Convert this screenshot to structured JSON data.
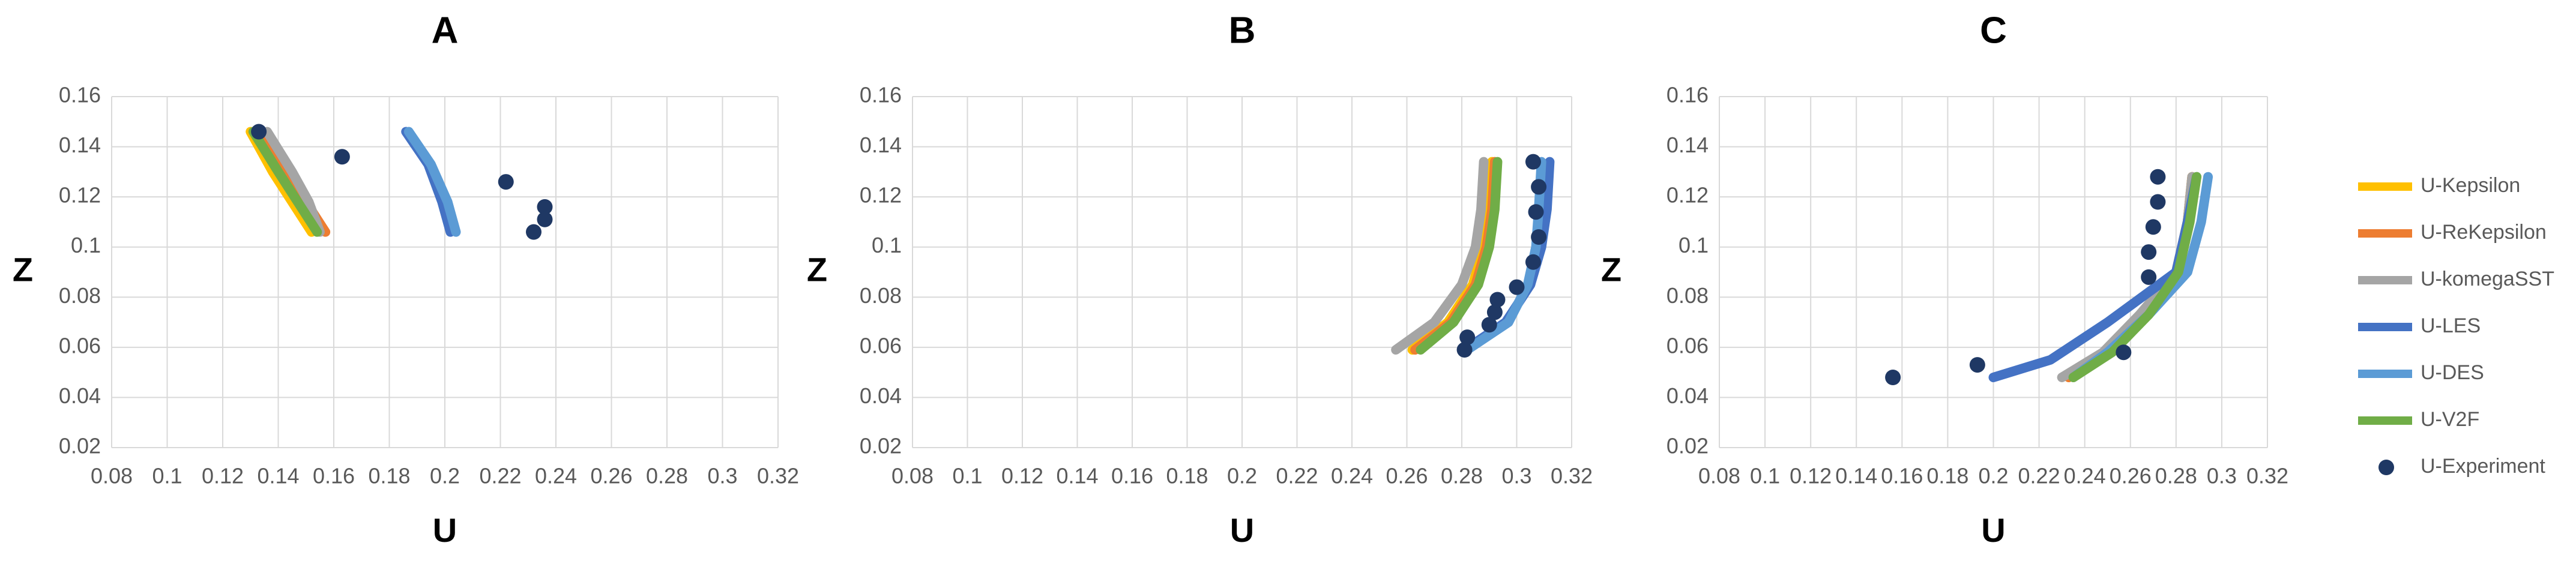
{
  "chart_data": [
    {
      "type": "line",
      "title": "A",
      "x_label": "U",
      "y_label": "Z",
      "xlim": [
        0.08,
        0.32
      ],
      "ylim": [
        0.02,
        0.16
      ],
      "xticks": [
        0.08,
        0.1,
        0.12,
        0.14,
        0.16,
        0.18,
        0.2,
        0.22,
        0.24,
        0.26,
        0.28,
        0.3,
        0.32
      ],
      "yticks": [
        0.02,
        0.04,
        0.06,
        0.08,
        0.1,
        0.12,
        0.14,
        0.16
      ],
      "grid": true,
      "series": [
        {
          "name": "U-Kepsilon",
          "color": "#ffc000",
          "x": [
            0.13,
            0.138,
            0.145,
            0.152
          ],
          "values": [
            0.146,
            0.13,
            0.118,
            0.106
          ]
        },
        {
          "name": "U-ReKepsilon",
          "color": "#ed7d31",
          "x": [
            0.133,
            0.142,
            0.15,
            0.157
          ],
          "values": [
            0.146,
            0.13,
            0.118,
            0.106
          ]
        },
        {
          "name": "U-komegaSST",
          "color": "#a5a5a5",
          "x": [
            0.136,
            0.145,
            0.151,
            0.155
          ],
          "values": [
            0.146,
            0.13,
            0.118,
            0.106
          ]
        },
        {
          "name": "U-LES",
          "color": "#4472c4",
          "x": [
            0.186,
            0.194,
            0.199,
            0.202
          ],
          "values": [
            0.146,
            0.133,
            0.118,
            0.106
          ]
        },
        {
          "name": "U-DES",
          "color": "#5b9bd5",
          "x": [
            0.187,
            0.195,
            0.201,
            0.204
          ],
          "values": [
            0.146,
            0.133,
            0.118,
            0.106
          ]
        },
        {
          "name": "U-V2F",
          "color": "#70ad47",
          "x": [
            0.131,
            0.14,
            0.147,
            0.154
          ],
          "values": [
            0.146,
            0.13,
            0.118,
            0.106
          ]
        },
        {
          "name": "U-Experiment",
          "color": "#1f3864",
          "mode": "markers",
          "x": [
            0.133,
            0.163,
            0.222,
            0.236,
            0.236,
            0.232
          ],
          "values": [
            0.146,
            0.136,
            0.126,
            0.116,
            0.111,
            0.106
          ]
        }
      ]
    },
    {
      "type": "line",
      "title": "B",
      "x_label": "U",
      "y_label": "Z",
      "xlim": [
        0.08,
        0.32
      ],
      "ylim": [
        0.02,
        0.16
      ],
      "xticks": [
        0.08,
        0.1,
        0.12,
        0.14,
        0.16,
        0.18,
        0.2,
        0.22,
        0.24,
        0.26,
        0.28,
        0.3,
        0.32
      ],
      "yticks": [
        0.02,
        0.04,
        0.06,
        0.08,
        0.1,
        0.12,
        0.14,
        0.16
      ],
      "grid": true,
      "series": [
        {
          "name": "U-Kepsilon",
          "color": "#ffc000",
          "x": [
            0.262,
            0.275,
            0.284,
            0.288,
            0.29,
            0.291
          ],
          "values": [
            0.059,
            0.07,
            0.085,
            0.1,
            0.115,
            0.134
          ]
        },
        {
          "name": "U-ReKepsilon",
          "color": "#ed7d31",
          "x": [
            0.263,
            0.276,
            0.285,
            0.289,
            0.291,
            0.292
          ],
          "values": [
            0.059,
            0.07,
            0.085,
            0.1,
            0.115,
            0.134
          ]
        },
        {
          "name": "U-komegaSST",
          "color": "#a5a5a5",
          "x": [
            0.256,
            0.27,
            0.28,
            0.285,
            0.287,
            0.288
          ],
          "values": [
            0.059,
            0.07,
            0.085,
            0.1,
            0.115,
            0.134
          ]
        },
        {
          "name": "U-LES",
          "color": "#4472c4",
          "x": [
            0.281,
            0.296,
            0.305,
            0.309,
            0.311,
            0.312
          ],
          "values": [
            0.059,
            0.07,
            0.085,
            0.1,
            0.115,
            0.134
          ]
        },
        {
          "name": "U-DES",
          "color": "#5b9bd5",
          "x": [
            0.282,
            0.297,
            0.304,
            0.307,
            0.308,
            0.309
          ],
          "values": [
            0.059,
            0.07,
            0.085,
            0.1,
            0.115,
            0.134
          ]
        },
        {
          "name": "U-V2F",
          "color": "#70ad47",
          "x": [
            0.265,
            0.277,
            0.286,
            0.29,
            0.292,
            0.293
          ],
          "values": [
            0.059,
            0.07,
            0.085,
            0.1,
            0.115,
            0.134
          ]
        },
        {
          "name": "U-Experiment",
          "color": "#1f3864",
          "mode": "markers",
          "x": [
            0.281,
            0.282,
            0.29,
            0.292,
            0.293,
            0.3,
            0.306,
            0.308,
            0.307,
            0.308,
            0.306
          ],
          "values": [
            0.059,
            0.064,
            0.069,
            0.074,
            0.079,
            0.084,
            0.094,
            0.104,
            0.114,
            0.124,
            0.134
          ]
        }
      ]
    },
    {
      "type": "line",
      "title": "C",
      "x_label": "U",
      "y_label": "Z",
      "xlim": [
        0.08,
        0.32
      ],
      "ylim": [
        0.02,
        0.16
      ],
      "xticks": [
        0.08,
        0.1,
        0.12,
        0.14,
        0.16,
        0.18,
        0.2,
        0.22,
        0.24,
        0.26,
        0.28,
        0.3,
        0.32
      ],
      "yticks": [
        0.02,
        0.04,
        0.06,
        0.08,
        0.1,
        0.12,
        0.14,
        0.16
      ],
      "grid": true,
      "legend": "right",
      "series": [
        {
          "name": "U-Kepsilon",
          "color": "#ffc000",
          "x": [
            0.233,
            0.25,
            0.266,
            0.28,
            0.285,
            0.287
          ],
          "values": [
            0.048,
            0.058,
            0.073,
            0.09,
            0.11,
            0.128
          ]
        },
        {
          "name": "U-ReKepsilon",
          "color": "#ed7d31",
          "x": [
            0.233,
            0.25,
            0.266,
            0.28,
            0.285,
            0.287
          ],
          "values": [
            0.048,
            0.058,
            0.073,
            0.09,
            0.11,
            0.128
          ]
        },
        {
          "name": "U-komegaSST",
          "color": "#a5a5a5",
          "x": [
            0.23,
            0.248,
            0.264,
            0.28,
            0.285,
            0.287
          ],
          "values": [
            0.048,
            0.058,
            0.073,
            0.09,
            0.11,
            0.128
          ]
        },
        {
          "name": "U-LES",
          "color": "#4472c4",
          "x": [
            0.2,
            0.225,
            0.25,
            0.28,
            0.285,
            0.289
          ],
          "values": [
            0.048,
            0.055,
            0.07,
            0.09,
            0.11,
            0.128
          ]
        },
        {
          "name": "U-DES",
          "color": "#5b9bd5",
          "x": [
            0.235,
            0.25,
            0.268,
            0.285,
            0.291,
            0.294
          ],
          "values": [
            0.048,
            0.058,
            0.073,
            0.09,
            0.11,
            0.128
          ]
        },
        {
          "name": "U-V2F",
          "color": "#70ad47",
          "x": [
            0.235,
            0.252,
            0.268,
            0.281,
            0.286,
            0.289
          ],
          "values": [
            0.048,
            0.058,
            0.073,
            0.09,
            0.11,
            0.128
          ]
        },
        {
          "name": "U-Experiment",
          "color": "#1f3864",
          "mode": "markers",
          "x": [
            0.156,
            0.193,
            0.257,
            0.268,
            0.268,
            0.27,
            0.272,
            0.272
          ],
          "values": [
            0.048,
            0.053,
            0.058,
            0.088,
            0.098,
            0.108,
            0.118,
            0.128
          ]
        }
      ]
    }
  ]
}
